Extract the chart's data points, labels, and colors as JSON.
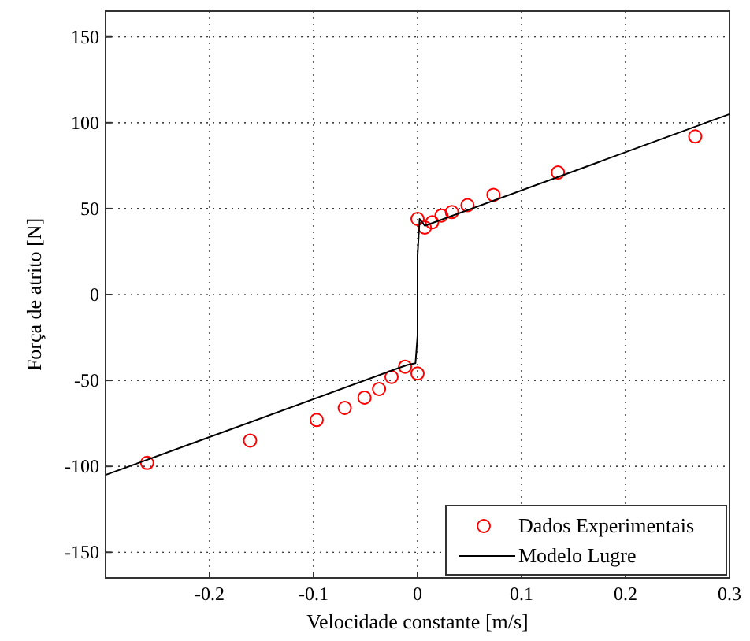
{
  "chart_data": {
    "type": "scatter",
    "xlabel": "Velocidade constante [m/s]",
    "ylabel": "Força de atrito [N]",
    "xlim": [
      -0.3,
      0.3
    ],
    "ylim": [
      -165,
      165
    ],
    "xticks": [
      -0.2,
      -0.1,
      0,
      0.1,
      0.2,
      0.3
    ],
    "yticks": [
      -150,
      -100,
      -50,
      0,
      50,
      100,
      150
    ],
    "grid": true,
    "legend": "bottom right",
    "series": [
      {
        "name": "Dados Experimentais",
        "marker": "circle",
        "color": "#ff0000",
        "x": [
          0,
          0.007,
          0.014,
          0.023,
          0.033,
          0.048,
          0.073,
          0.135,
          0.267,
          -0.26,
          -0.161,
          -0.097,
          -0.07,
          -0.051,
          -0.037,
          -0.025,
          -0.012,
          0
        ],
        "values": [
          44,
          39,
          42,
          46,
          48,
          52,
          58,
          71,
          92,
          -98,
          -85,
          -73,
          -66,
          -60,
          -55,
          -48,
          -42,
          -46
        ]
      },
      {
        "name": "Modelo Lugre",
        "type": "line",
        "line_style": "solid",
        "color": "#000000",
        "x": [
          -0.3,
          -0.01,
          -0.002,
          0,
          0,
          0.002,
          0.007,
          0.3
        ],
        "values": [
          -105,
          -41,
          -40,
          -24,
          23,
          44,
          40,
          105
        ]
      }
    ]
  }
}
